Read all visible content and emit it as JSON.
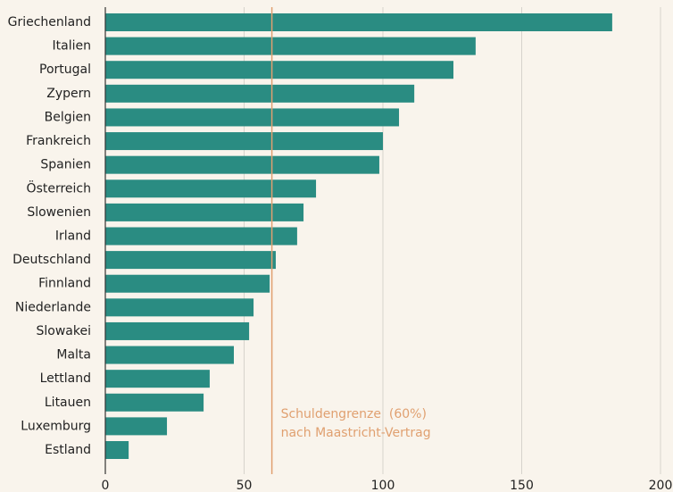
{
  "chart_data": {
    "type": "barh",
    "categories": [
      "Griechenland",
      "Italien",
      "Portugal",
      "Zypern",
      "Belgien",
      "Frankreich",
      "Spanien",
      "Österreich",
      "Slowenien",
      "Irland",
      "Deutschland",
      "Finnland",
      "Niederlande",
      "Slowakei",
      "Malta",
      "Lettland",
      "Litauen",
      "Luxemburg",
      "Estland"
    ],
    "values": [
      182.6,
      133.4,
      125.4,
      111.3,
      105.8,
      100,
      98.7,
      75.9,
      71.4,
      69.1,
      61.4,
      59.2,
      53.4,
      51.8,
      46.3,
      37.6,
      35.4,
      22.2,
      8.4
    ],
    "color": "#2a8c82",
    "xlim": [
      0,
      200
    ],
    "xticks": [
      0,
      50,
      100,
      150,
      200
    ],
    "grid": true,
    "reference_line": {
      "value": 60,
      "color": "#e0a070",
      "text": [
        "Schuldengrenze  (60%)",
        "nach Maastricht-Vertrag"
      ]
    }
  }
}
